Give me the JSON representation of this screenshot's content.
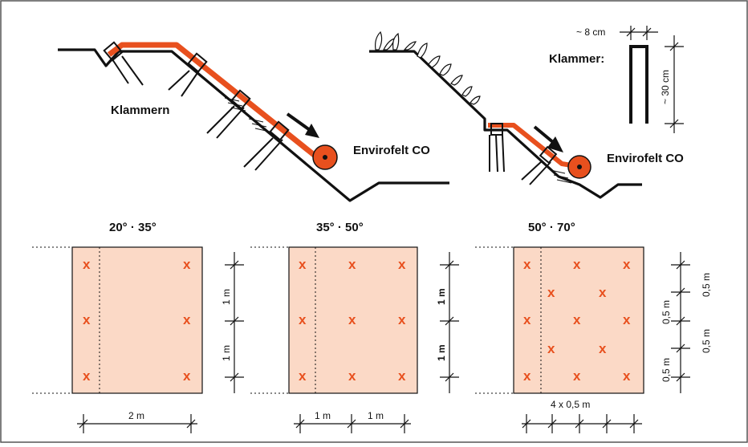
{
  "labels": {
    "klammern": "Klammern",
    "product_left": "Envirofelt CO",
    "product_right": "Envirofelt CO",
    "klammer": "Klammer:",
    "staple_width": "~ 8 cm",
    "staple_height": "~ 30 cm"
  },
  "panels": [
    {
      "heading": "20° · 35°",
      "mark": "x",
      "marks_per_row": [
        2,
        2,
        2
      ],
      "vertical_dims": [
        "1 m",
        "1 m"
      ],
      "horizontal_dims": [
        "2 m"
      ]
    },
    {
      "heading": "35° · 50°",
      "mark": "x",
      "marks_per_row": [
        3,
        3,
        3
      ],
      "vertical_dims": [
        "1 m",
        "1 m"
      ],
      "horizontal_dims": [
        "1 m",
        "1 m"
      ]
    },
    {
      "heading": "50° · 70°",
      "mark": "x",
      "marks_per_row": [
        3,
        2,
        3,
        2,
        3
      ],
      "vertical_dims": [
        "0,5 m",
        "0,5 m",
        "0,5 m",
        "0,5 m",
        "0,5 m"
      ],
      "horizontal_dims": [
        "4 x 0,5 m"
      ]
    }
  ],
  "colors": {
    "felt": "#e8501e",
    "panel_fill": "#fbd9c6",
    "line": "#111111"
  }
}
